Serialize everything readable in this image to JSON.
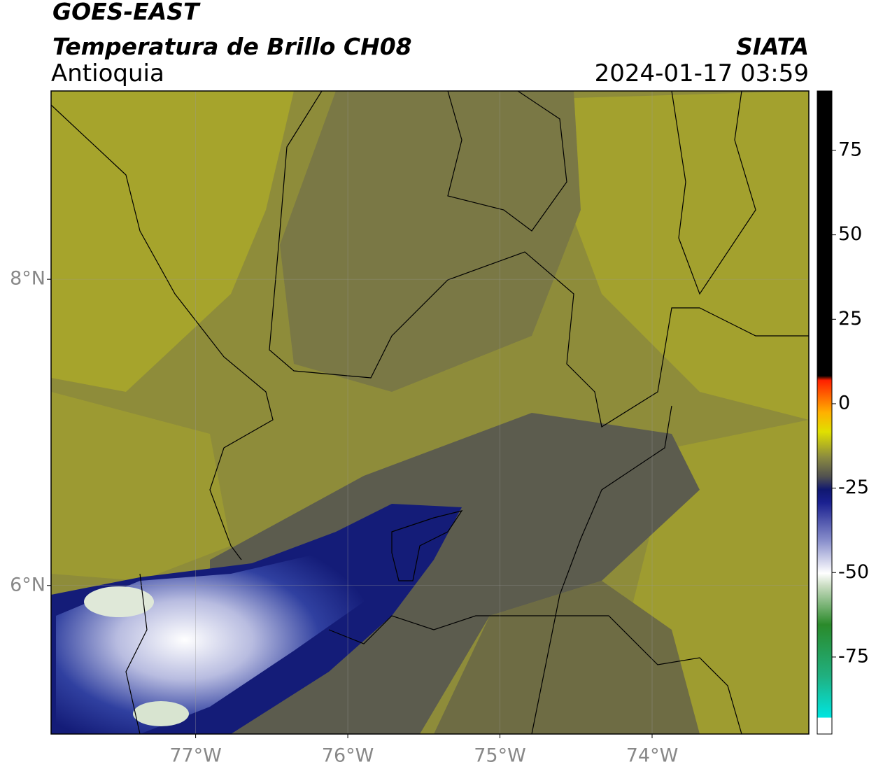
{
  "header": {
    "title": "GOES-EAST",
    "subtitle": "Temperatura de Brillo CH08",
    "region": "Antioquia",
    "source": "SIATA",
    "datetime": "2024-01-17 03:59"
  },
  "map": {
    "xlim": [
      -77.95,
      -72.97
    ],
    "ylim": [
      5.03,
      9.23
    ],
    "xticks": [
      {
        "value": -77,
        "label": "77°W"
      },
      {
        "value": -76,
        "label": "76°W"
      },
      {
        "value": -75,
        "label": "75°W"
      },
      {
        "value": -74,
        "label": "74°W"
      }
    ],
    "yticks": [
      {
        "value": 6,
        "label": "6°N"
      },
      {
        "value": 8,
        "label": "8°N"
      }
    ]
  },
  "colorbar": {
    "lim": [
      -97.8,
      92.6
    ],
    "ticks": [
      75,
      50,
      25,
      0,
      -25,
      -50,
      -75
    ]
  }
}
